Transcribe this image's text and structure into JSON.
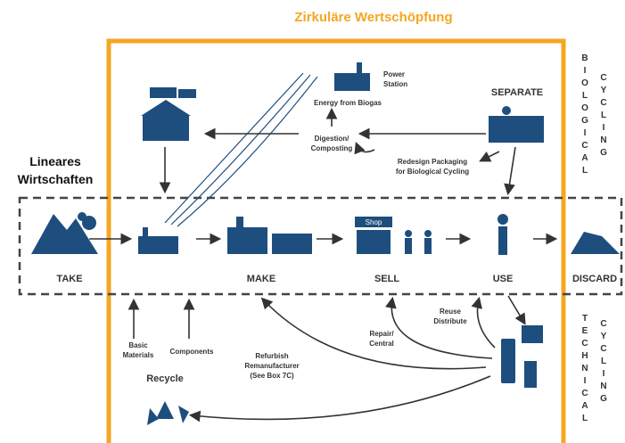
{
  "title": "Zirkuläre Wertschöpfung",
  "linear_label": [
    "Lineares",
    "Wirtschaften"
  ],
  "stages": [
    "TAKE",
    "MAKE",
    "SELL",
    "USE",
    "DISCARD"
  ],
  "shop": "Shop",
  "biological": {
    "word1": "BIOLOGICAL",
    "word2": "CYCLING"
  },
  "technical": {
    "word1": "TECHNICAL",
    "word2": "CYCLING"
  },
  "labels": {
    "power_station": [
      "Power",
      "Station"
    ],
    "energy": "Energy from Biogas",
    "separate": "SEPARATE",
    "digestion": [
      "Digestion/",
      "Composting"
    ],
    "redesign": [
      "Redesign Packaging",
      "for Biological Cycling"
    ],
    "basic_materials": [
      "Basic",
      "Materials"
    ],
    "components": "Components",
    "recycle": "Recycle",
    "refurbish": [
      "Refurbish",
      "Remanufacturer",
      "(See Box 7C)"
    ],
    "repair": [
      "Repair/",
      "Central"
    ],
    "reuse": [
      "Reuse",
      "Distribute"
    ]
  }
}
